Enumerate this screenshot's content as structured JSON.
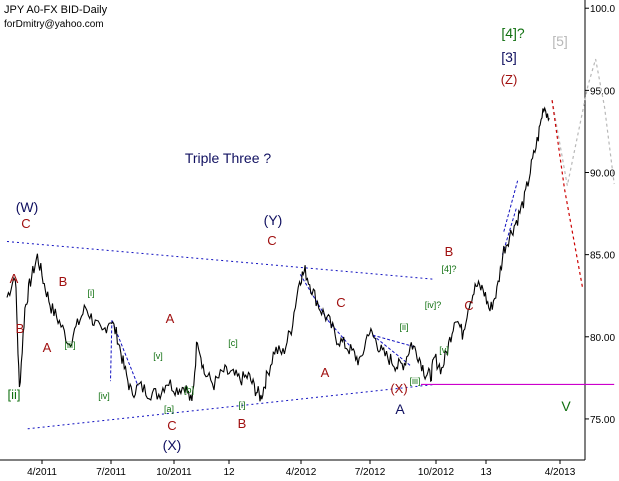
{
  "header": {
    "title": "JPY A0-FX BID-Daily",
    "author": "forDmitry@yahoo.com"
  },
  "chart_data": {
    "type": "line",
    "title": "JPY A0-FX BID-Daily",
    "xlabel": "",
    "ylabel": "",
    "x_ticks": [
      "4/2011",
      "7/2011",
      "10/2011",
      "12",
      "4/2012",
      "7/2012",
      "10/2012",
      "13",
      "4/2013"
    ],
    "y_ticks": [
      75.0,
      80.0,
      85.0,
      90.0,
      95.0,
      100.0
    ],
    "ylim": [
      72.5,
      100.5
    ],
    "colors": {
      "price": "#000000",
      "trend_line": "#1010c0",
      "forecast_down": "#cc0000",
      "forecast_up": "#b8b8b8",
      "support": "#cc00cc",
      "red_label": "#a01010",
      "green_label": "#107010",
      "navy_label": "#101060"
    },
    "series": [
      {
        "values": [
          [
            0.0,
            82.4
          ],
          [
            1.2,
            83.8
          ],
          [
            1.8,
            76.8
          ],
          [
            2.6,
            81.7
          ],
          [
            3.4,
            83.4
          ],
          [
            4.4,
            84.9
          ],
          [
            5.4,
            83.2
          ],
          [
            6.4,
            81.8
          ],
          [
            7.6,
            80.9
          ],
          [
            9.0,
            79.6
          ],
          [
            10.2,
            80.7
          ],
          [
            11.4,
            81.8
          ],
          [
            12.6,
            80.9
          ],
          [
            13.8,
            80.2
          ],
          [
            15.0,
            81.1
          ],
          [
            16.0,
            80.0
          ],
          [
            17.0,
            78.1
          ],
          [
            18.0,
            76.6
          ],
          [
            19.2,
            77.0
          ],
          [
            20.6,
            76.6
          ],
          [
            22.0,
            76.5
          ],
          [
            23.2,
            77.3
          ],
          [
            24.6,
            76.8
          ],
          [
            25.8,
            77.0
          ],
          [
            26.8,
            75.9
          ],
          [
            27.6,
            80.0
          ],
          [
            28.6,
            77.8
          ],
          [
            30.0,
            77.1
          ],
          [
            31.4,
            77.9
          ],
          [
            32.6,
            77.7
          ],
          [
            33.8,
            77.4
          ],
          [
            35.0,
            77.6
          ],
          [
            36.0,
            76.8
          ],
          [
            36.8,
            76.3
          ],
          [
            37.6,
            77.5
          ],
          [
            38.8,
            79.2
          ],
          [
            40.0,
            79.0
          ],
          [
            41.2,
            80.5
          ],
          [
            42.4,
            83.5
          ],
          [
            43.2,
            84.0
          ],
          [
            44.2,
            82.9
          ],
          [
            45.4,
            81.7
          ],
          [
            46.6,
            81.0
          ],
          [
            47.8,
            79.9
          ],
          [
            49.0,
            79.5
          ],
          [
            50.2,
            79.0
          ],
          [
            51.2,
            78.4
          ],
          [
            52.4,
            80.4
          ],
          [
            53.4,
            79.8
          ],
          [
            54.4,
            79.0
          ],
          [
            55.6,
            78.6
          ],
          [
            56.6,
            78.2
          ],
          [
            57.6,
            78.4
          ],
          [
            58.6,
            79.6
          ],
          [
            59.6,
            78.9
          ],
          [
            60.6,
            77.8
          ],
          [
            61.4,
            77.6
          ],
          [
            62.0,
            78.7
          ],
          [
            63.0,
            78.0
          ],
          [
            64.0,
            79.5
          ],
          [
            65.0,
            81.3
          ],
          [
            66.0,
            80.2
          ],
          [
            67.0,
            82.1
          ],
          [
            68.0,
            83.1
          ],
          [
            69.0,
            82.9
          ],
          [
            70.0,
            81.6
          ],
          [
            71.0,
            82.8
          ],
          [
            72.0,
            85.3
          ],
          [
            73.0,
            86.3
          ],
          [
            74.0,
            87.2
          ],
          [
            75.0,
            88.4
          ],
          [
            76.0,
            90.4
          ],
          [
            77.0,
            92.2
          ],
          [
            77.8,
            94.1
          ],
          [
            78.6,
            93.3
          ]
        ]
      }
    ],
    "forecast": {
      "down": [
        [
          79.0,
          94.4
        ],
        [
          80.8,
          89.0
        ],
        [
          83.4,
          83.0
        ]
      ],
      "up": [
        [
          79.0,
          94.4
        ],
        [
          81.2,
          89.2
        ],
        [
          84.2,
          95.3
        ],
        [
          85.3,
          96.9
        ],
        [
          86.6,
          94.0
        ],
        [
          88.0,
          89.3
        ]
      ]
    },
    "trend_lines": [
      {
        "from": [
          0.0,
          85.8
        ],
        "to": [
          62.0,
          83.5
        ]
      },
      {
        "from": [
          3.0,
          74.4
        ],
        "to": [
          62.0,
          77.1
        ]
      }
    ],
    "support_line": {
      "from": [
        60.0,
        77.1
      ],
      "to": [
        88.0,
        77.1
      ]
    },
    "annotations": {
      "texts": [
        "Triple Three ?",
        "(W)",
        "C",
        "A",
        "B",
        "A",
        "B",
        "A",
        "C",
        "(X)",
        "(Y)",
        "C",
        "B",
        "A",
        "C",
        "(X)",
        "A",
        "B",
        "C",
        "(Z)",
        "[3]",
        "[ii]",
        "[i]",
        "[iii]",
        "[iv]",
        "[v]",
        "[a]",
        "[b]",
        "[c]",
        "[i]",
        "[ii]",
        "[iii]",
        "[iv]?",
        "[v]",
        "[4]?",
        "[4]?",
        "[5]",
        "V"
      ]
    }
  }
}
